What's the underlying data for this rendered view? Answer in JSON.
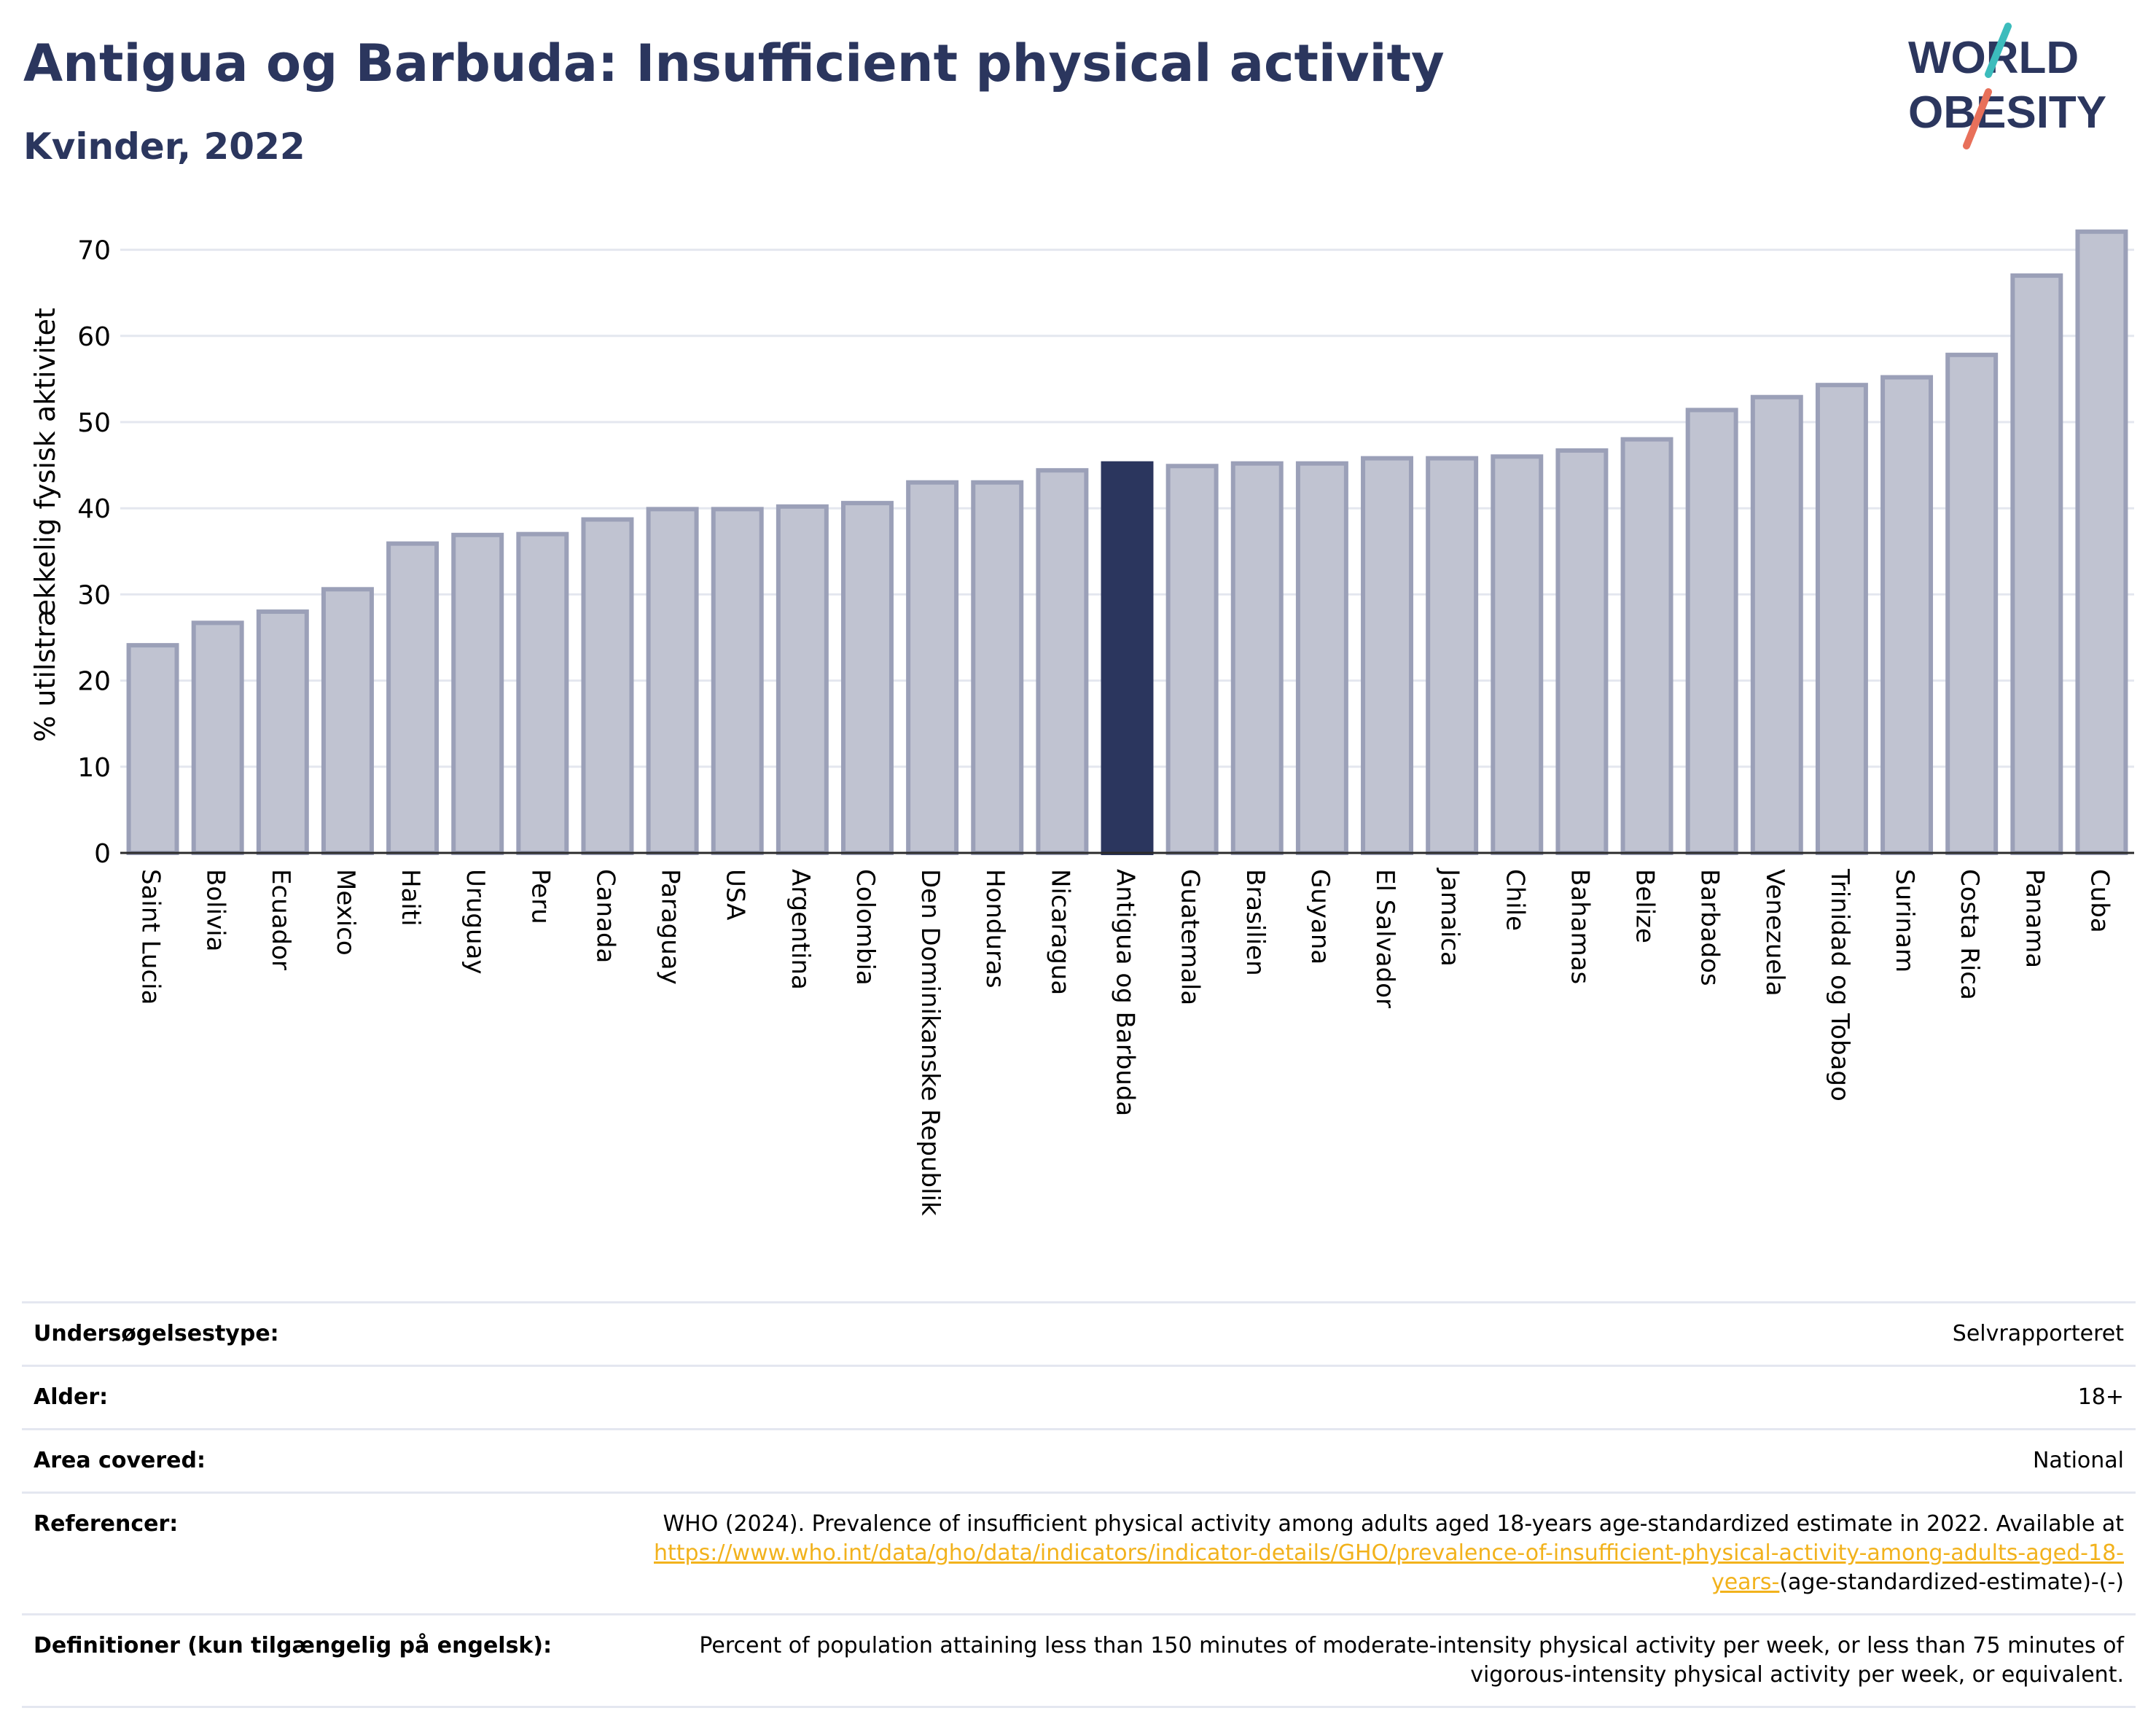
{
  "header": {
    "title": "Antigua og Barbuda: Insufficient physical activity",
    "subtitle": "Kvinder, 2022"
  },
  "logo": {
    "line1": "WORLD",
    "line2": "OBESITY",
    "accent_teal": "#3cbcbc",
    "accent_coral": "#e8705a",
    "text_color": "#2b365e"
  },
  "colors": {
    "bar_default": "#c0c3d1",
    "bar_default_stroke": "#9ba0b8",
    "bar_highlight": "#2b365e",
    "grid": "#e4e7ef",
    "axis": "#2b2b2b"
  },
  "chart_data": {
    "type": "bar",
    "title": "Antigua og Barbuda: Insufficient physical activity",
    "subtitle": "Kvinder, 2022",
    "xlabel": "",
    "ylabel": "% utilstrækkelig fysisk aktivitet",
    "ylim": [
      0,
      75
    ],
    "yticks": [
      0,
      10,
      20,
      30,
      40,
      50,
      60,
      70
    ],
    "grid": true,
    "highlight": "Antigua og Barbuda",
    "categories": [
      "Saint Lucia",
      "Bolivia",
      "Ecuador",
      "Mexico",
      "Haiti",
      "Uruguay",
      "Peru",
      "Canada",
      "Paraguay",
      "USA",
      "Argentina",
      "Colombia",
      "Den Dominikanske Republik",
      "Honduras",
      "Nicaragua",
      "Antigua og Barbuda",
      "Guatemala",
      "Brasilien",
      "Guyana",
      "El Salvador",
      "Jamaica",
      "Chile",
      "Bahamas",
      "Belize",
      "Barbados",
      "Venezuela",
      "Trinidad og Tobago",
      "Surinam",
      "Costa Rica",
      "Panama",
      "Cuba"
    ],
    "values": [
      24.1,
      26.7,
      28.0,
      30.6,
      35.9,
      36.9,
      37.0,
      38.7,
      39.9,
      39.9,
      40.2,
      40.6,
      43.0,
      43.0,
      44.4,
      45.2,
      44.9,
      45.2,
      45.2,
      45.8,
      45.8,
      46.0,
      46.7,
      48.0,
      51.4,
      52.9,
      54.3,
      55.2,
      57.8,
      67.0,
      72.1
    ]
  },
  "meta": [
    {
      "key": "Undersøgelsestype:",
      "value": "Selvrapporteret"
    },
    {
      "key": "Alder:",
      "value": "18+"
    },
    {
      "key": "Area covered:",
      "value": "National"
    },
    {
      "key": "Referencer:",
      "value": "WHO (2024). Prevalence of insufficient physical activity among adults aged 18-years age-standardized estimate in 2022. Available at",
      "link": "https://www.who.int/data/gho/data/indicators/indicator-details/GHO/prevalence-of-insufficient-physical-activity-among-adults-aged-18-years-",
      "suffix": "(age-standardized-estimate)-(-)"
    },
    {
      "key": "Definitioner (kun tilgængelig på engelsk):",
      "value": "Percent of population attaining less than 150 minutes of moderate-intensity physical activity per week, or less than 75 minutes of vigorous-intensity physical activity per week, or equivalent."
    }
  ]
}
